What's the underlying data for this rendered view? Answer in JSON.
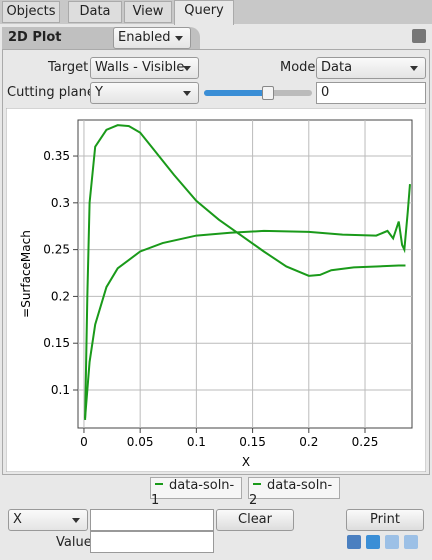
{
  "tabs": [
    "Objects",
    "Data",
    "View",
    "Query"
  ],
  "panel": {
    "title": "2D Plot",
    "state": "Enabled"
  },
  "controls": {
    "target_label": "Target",
    "target": "Walls - Visible",
    "mode_label": "Mode",
    "mode": "Data",
    "plane_label": "Cutting plane",
    "plane": "Y",
    "plane_value": "0"
  },
  "chart_data": {
    "type": "line",
    "x_label": "X",
    "y_label": "=SurfaceMach",
    "xlim": [
      -0.0053,
      0.2918
    ],
    "ylim": [
      0.0594,
      0.3885
    ],
    "xticks": [
      0,
      0.05,
      0.1,
      0.15,
      0.2,
      0.25
    ],
    "yticks": [
      0.1,
      0.15,
      0.2,
      0.25,
      0.3,
      0.35
    ],
    "grid": true,
    "series": [
      {
        "name": "data-soln-1",
        "color": "#1a9a1a",
        "x": [
          0.001,
          0.003,
          0.005,
          0.01,
          0.02,
          0.03,
          0.04,
          0.05,
          0.06,
          0.08,
          0.1,
          0.12,
          0.14,
          0.16,
          0.18,
          0.2,
          0.21,
          0.22,
          0.24,
          0.26,
          0.28,
          0.286
        ],
        "values": [
          0.068,
          0.2,
          0.3,
          0.36,
          0.378,
          0.383,
          0.382,
          0.375,
          0.36,
          0.33,
          0.302,
          0.282,
          0.265,
          0.248,
          0.232,
          0.222,
          0.223,
          0.228,
          0.231,
          0.232,
          0.233,
          0.233
        ]
      },
      {
        "name": "data-soln-2",
        "color": "#1a9a1a",
        "x": [
          0.001,
          0.005,
          0.01,
          0.02,
          0.03,
          0.05,
          0.07,
          0.1,
          0.13,
          0.16,
          0.2,
          0.23,
          0.26,
          0.27,
          0.275,
          0.28,
          0.283,
          0.285,
          0.288,
          0.29
        ],
        "values": [
          0.07,
          0.13,
          0.17,
          0.21,
          0.23,
          0.248,
          0.257,
          0.265,
          0.268,
          0.27,
          0.269,
          0.266,
          0.265,
          0.27,
          0.262,
          0.28,
          0.255,
          0.25,
          0.29,
          0.32
        ]
      }
    ]
  },
  "probe": {
    "axis": "X",
    "clear": "Clear",
    "print": "Print",
    "value_label": "Value"
  }
}
